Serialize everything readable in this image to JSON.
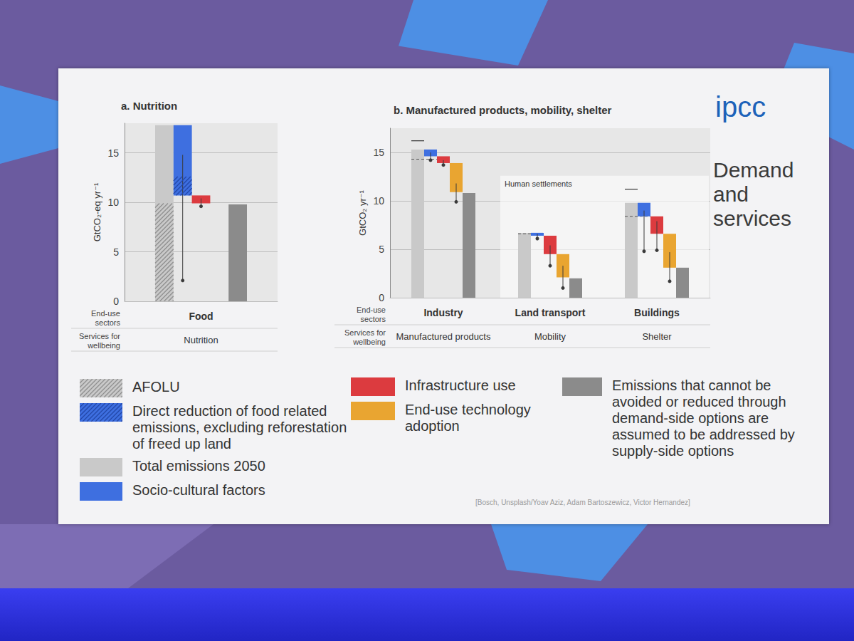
{
  "slide": {
    "heading": "Demand and services",
    "logo": "ipcc",
    "credit": "[Bosch, Unsplash/Yoav Aziz, Adam Bartoszewicz, Victor Hernandez]"
  },
  "legend_items": [
    "AFOLU",
    "Direct reduction of food related emissions, excluding reforestation of freed up land",
    "Total emissions 2050",
    "Socio-cultural factors",
    "Infrastructure use",
    "End-use technology adoption",
    "Emissions that cannot be avoided or reduced through demand-side options are assumed to be addressed by supply-side options"
  ],
  "chart_data": [
    {
      "type": "waterfall",
      "title": "a. Nutrition",
      "ylabel": "GtCO₂-eq yr⁻¹",
      "row_labels": [
        "End-use sectors",
        "Services for wellbeing"
      ],
      "categories": [
        "Food"
      ],
      "services": [
        "Nutrition"
      ],
      "ylim": [
        0,
        18
      ],
      "yticks": [
        0,
        5,
        10,
        15
      ],
      "grid": true,
      "series": [
        {
          "name": "Total emissions 2050",
          "type": "total",
          "color": "#c9c9c9",
          "values": [
            17.8
          ]
        },
        {
          "name": "AFOLU",
          "type": "hatch",
          "color": "#8f8f8f",
          "values": [
            9.9
          ]
        },
        {
          "name": "Socio-cultural factors",
          "type": "step",
          "color": "#3e6fe0",
          "values": [
            7.1
          ],
          "error_low": [
            2.1
          ],
          "error_high": [
            14.8
          ]
        },
        {
          "name": "Direct reduction of food related emissions, excluding reforestation of freed up land",
          "type": "hatch",
          "color": "#2347a8",
          "values": [
            1.9
          ]
        },
        {
          "name": "Infrastructure use",
          "type": "step",
          "color": "#dc3b3f",
          "values": [
            0.8
          ],
          "error_low": [
            9.6
          ],
          "error_high": [
            10.4
          ]
        },
        {
          "name": "Emissions that cannot be avoided or reduced through demand-side options are assumed to be addressed by supply-side options",
          "type": "remainder",
          "color": "#8b8b8b",
          "values": [
            9.8
          ]
        }
      ]
    },
    {
      "type": "waterfall",
      "title": "b. Manufactured products, mobility, shelter",
      "ylabel": "GtCO₂ yr⁻¹",
      "row_labels": [
        "End-use sectors",
        "Services for wellbeing"
      ],
      "categories": [
        "Industry",
        "Land transport",
        "Buildings"
      ],
      "services": [
        "Manufactured products",
        "Mobility",
        "Shelter"
      ],
      "group": {
        "label": "Human settlements",
        "categories": [
          "Land transport",
          "Buildings"
        ]
      },
      "ylim": [
        0,
        17.5
      ],
      "yticks": [
        0,
        5,
        10,
        15
      ],
      "grid": true,
      "series": [
        {
          "name": "Total emissions 2050",
          "type": "total",
          "color": "#c9c9c9",
          "values": [
            15.3,
            6.7,
            9.8
          ],
          "solid_marks": [
            16.2,
            null,
            11.2
          ],
          "dashed_marks": [
            14.3,
            6.6,
            8.4
          ]
        },
        {
          "name": "Socio-cultural factors",
          "type": "step",
          "color": "#3e6fe0",
          "values": [
            0.7,
            0.3,
            1.4
          ],
          "error_low": [
            14.2,
            6.1,
            4.8
          ],
          "error_high": [
            15.0,
            6.6,
            9.0
          ]
        },
        {
          "name": "Infrastructure use",
          "type": "step",
          "color": "#dc3b3f",
          "values": [
            0.7,
            1.9,
            1.8
          ],
          "error_low": [
            13.7,
            3.3,
            4.9
          ],
          "error_high": [
            14.2,
            5.4,
            7.9
          ]
        },
        {
          "name": "End-use technology adoption",
          "type": "step",
          "color": "#e9a531",
          "values": [
            3.0,
            2.4,
            3.5
          ],
          "error_low": [
            9.9,
            1.0,
            1.7
          ],
          "error_high": [
            11.8,
            3.3,
            4.7
          ]
        },
        {
          "name": "Emissions that cannot be avoided or reduced through demand-side options are assumed to be addressed by supply-side options",
          "type": "remainder",
          "color": "#8b8b8b",
          "values": [
            10.8,
            2.0,
            3.1
          ]
        }
      ]
    }
  ]
}
